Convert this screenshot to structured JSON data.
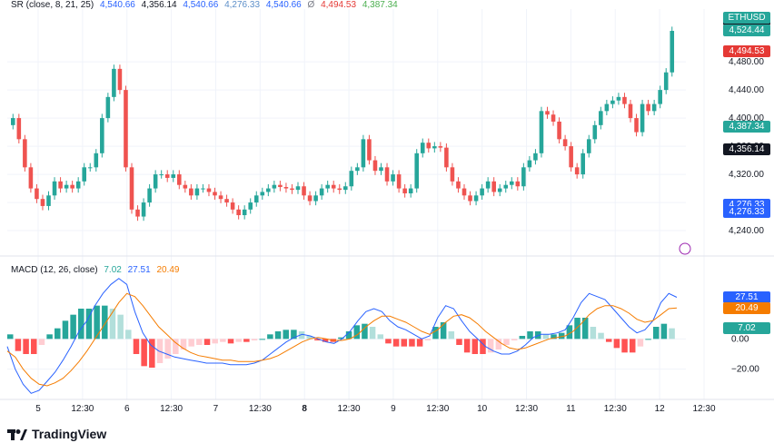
{
  "indicator": {
    "label": "SR (close, 8, 21, 25)",
    "values": [
      "4,540.66",
      "4,356.14",
      "4,540.66",
      "4,276.33",
      "4,540.66"
    ],
    "symbol_zero": "Ø",
    "values2": [
      "4,494.53",
      "4,387.34"
    ],
    "colors": [
      "#2962ff",
      "#131722",
      "#2962ff",
      "#5d8fc9",
      "#2962ff",
      "#e53935",
      "#4caf50"
    ]
  },
  "macd": {
    "label": "MACD (12, 26, close)",
    "values": [
      "7.02",
      "27.51",
      "20.49"
    ],
    "colors": [
      "#26a69a",
      "#2962ff",
      "#f57c00"
    ]
  },
  "price_tags": [
    {
      "text": "4,540.66",
      "bg": "#131722",
      "y": 4540.66
    },
    {
      "text": "ETHUSD",
      "bg": "#26a69a",
      "y": 4524.44
    },
    {
      "text": "4,524.44",
      "bg": "#26a69a",
      "y": 4524.44
    },
    {
      "text": "4,494.53",
      "bg": "#e53935",
      "y": 4494.53
    },
    {
      "text": "4,387.34",
      "bg": "#26a69a",
      "y": 4387.34
    },
    {
      "text": "4,356.14",
      "bg": "#131722",
      "y": 4356.14
    },
    {
      "text": "4,276.33",
      "bg": "#2962ff",
      "y": 4276.33
    },
    {
      "text": "4,276.33",
      "bg": "#2962ff",
      "y": 4266.5
    }
  ],
  "macd_tags": [
    {
      "text": "27.51",
      "bg": "#2962ff",
      "y": 27.51
    },
    {
      "text": "20.49",
      "bg": "#f57c00",
      "y": 20.49
    },
    {
      "text": "7.02",
      "bg": "#26a69a",
      "y": 7.02
    }
  ],
  "chart_data": {
    "type": "line",
    "symbol": "ETHUSD",
    "x_ticks": [
      "5",
      "12:30",
      "6",
      "12:30",
      "7",
      "12:30",
      "8",
      "12:30",
      "9",
      "12:30",
      "10",
      "12:30",
      "11",
      "12:30",
      "12",
      "12:30"
    ],
    "price_axis": {
      "ticks": [
        4480.0,
        4440.0,
        4400.0,
        4360.0,
        4320.0,
        4280.0,
        4240.0
      ],
      "tick_labels": [
        "4,480.00",
        "4,440.00",
        "4,400.00",
        "4,360.00",
        "4,320.00",
        "4,280.00",
        "4,240.00"
      ],
      "range": [
        4222,
        4555
      ]
    },
    "macd_axis": {
      "ticks": [
        0.0,
        -20.0
      ],
      "tick_labels": [
        "0.00",
        "−20.00"
      ],
      "range": [
        -40,
        50
      ]
    },
    "close": [
      4400,
      4370,
      4330,
      4300,
      4285,
      4275,
      4290,
      4310,
      4300,
      4305,
      4300,
      4310,
      4330,
      4330,
      4350,
      4400,
      4430,
      4470,
      4440,
      4330,
      4270,
      4260,
      4280,
      4300,
      4320,
      4320,
      4315,
      4320,
      4305,
      4300,
      4290,
      4300,
      4300,
      4295,
      4290,
      4285,
      4280,
      4270,
      4262,
      4270,
      4280,
      4290,
      4295,
      4300,
      4305,
      4302,
      4300,
      4298,
      4303,
      4290,
      4282,
      4290,
      4300,
      4305,
      4300,
      4298,
      4303,
      4325,
      4330,
      4370,
      4340,
      4325,
      4330,
      4310,
      4320,
      4300,
      4293,
      4300,
      4350,
      4365,
      4357,
      4360,
      4358,
      4330,
      4310,
      4300,
      4290,
      4282,
      4290,
      4300,
      4310,
      4295,
      4300,
      4305,
      4310,
      4303,
      4330,
      4340,
      4350,
      4410,
      4405,
      4395,
      4370,
      4360,
      4330,
      4320,
      4350,
      4370,
      4390,
      4410,
      4420,
      4425,
      4430,
      4420,
      4400,
      4380,
      4420,
      4410,
      4420,
      4440,
      4465,
      4524
    ],
    "macd_line": [
      -5,
      -20,
      -30,
      -36,
      -34,
      -28,
      -22,
      -14,
      -5,
      5,
      12,
      22,
      30,
      36,
      40,
      36,
      18,
      4,
      -4,
      -8,
      -10,
      -12,
      -13,
      -14,
      -15,
      -16,
      -16,
      -16,
      -17,
      -17,
      -17,
      -16,
      -14,
      -10,
      -6,
      -2,
      1,
      3,
      2,
      0,
      -2,
      -3,
      0,
      5,
      12,
      18,
      20,
      18,
      12,
      8,
      6,
      3,
      0,
      2,
      14,
      22,
      20,
      12,
      5,
      0,
      -5,
      -8,
      -10,
      -10,
      -8,
      -4,
      1,
      3,
      3,
      4,
      6,
      14,
      24,
      30,
      28,
      26,
      20,
      14,
      8,
      4,
      6,
      12,
      24,
      30,
      27.51
    ],
    "signal_line": [
      -8,
      -12,
      -20,
      -26,
      -30,
      -31,
      -29,
      -26,
      -21,
      -15,
      -8,
      0,
      8,
      16,
      24,
      30,
      28,
      22,
      15,
      8,
      3,
      -2,
      -6,
      -9,
      -11,
      -12,
      -13,
      -14,
      -14,
      -15,
      -15,
      -15,
      -14,
      -13,
      -11,
      -8,
      -5,
      -2,
      0,
      1,
      0,
      -1,
      -1,
      0,
      3,
      8,
      12,
      15,
      15,
      13,
      11,
      8,
      5,
      3,
      6,
      11,
      15,
      16,
      14,
      10,
      5,
      1,
      -3,
      -6,
      -7,
      -6,
      -4,
      -2,
      0,
      1,
      2,
      5,
      10,
      16,
      20,
      22,
      22,
      20,
      17,
      13,
      11,
      12,
      16,
      20,
      20.49
    ],
    "histogram": [
      3,
      -8,
      -10,
      -10,
      -4,
      3,
      7,
      12,
      16,
      20,
      20,
      22,
      22,
      20,
      16,
      6,
      -10,
      -18,
      -19,
      -16,
      -13,
      -10,
      -7,
      -5,
      -4,
      -4,
      -3,
      -2,
      -3,
      -2,
      -2,
      -1,
      0,
      3,
      5,
      6,
      6,
      5,
      2,
      -1,
      -2,
      -2,
      1,
      5,
      9,
      10,
      8,
      3,
      -3,
      -5,
      -5,
      -5,
      -5,
      -1,
      8,
      11,
      5,
      -4,
      -9,
      -10,
      -10,
      -9,
      -7,
      -4,
      -1,
      2,
      5,
      5,
      3,
      3,
      4,
      9,
      14,
      14,
      8,
      4,
      -2,
      -6,
      -9,
      -9,
      -5,
      0,
      8,
      10,
      7.02
    ]
  }
}
